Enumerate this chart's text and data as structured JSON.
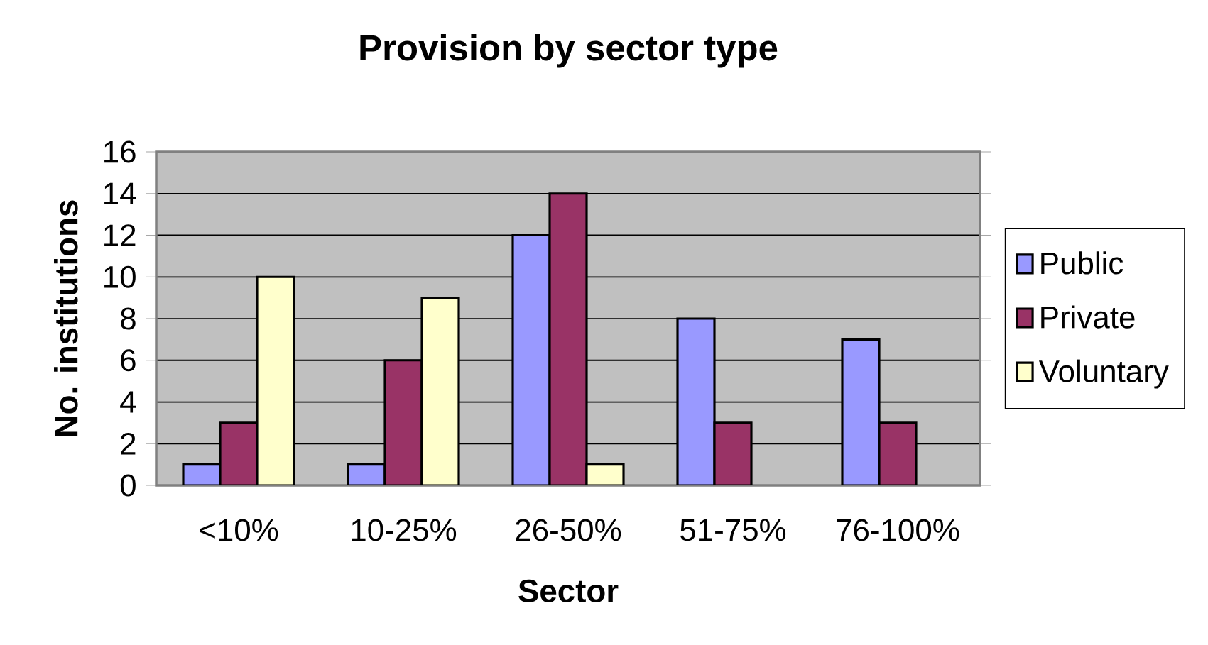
{
  "chart_data": {
    "type": "bar",
    "title": "Provision by sector type",
    "xlabel": "Sector",
    "ylabel": "No. institutions",
    "categories": [
      "<10%",
      "10-25%",
      "26-50%",
      "51-75%",
      "76-100%"
    ],
    "series": [
      {
        "name": "Public",
        "color": "#9999ff",
        "values": [
          1,
          1,
          12,
          8,
          7
        ]
      },
      {
        "name": "Private",
        "color": "#993366",
        "values": [
          3,
          6,
          14,
          3,
          3
        ]
      },
      {
        "name": "Voluntary",
        "color": "#ffffcc",
        "values": [
          10,
          9,
          1,
          null,
          null
        ]
      }
    ],
    "ylim": [
      0,
      16
    ],
    "yticks": [
      0,
      2,
      4,
      6,
      8,
      10,
      12,
      14,
      16
    ],
    "grid": "y",
    "legend": "right"
  }
}
